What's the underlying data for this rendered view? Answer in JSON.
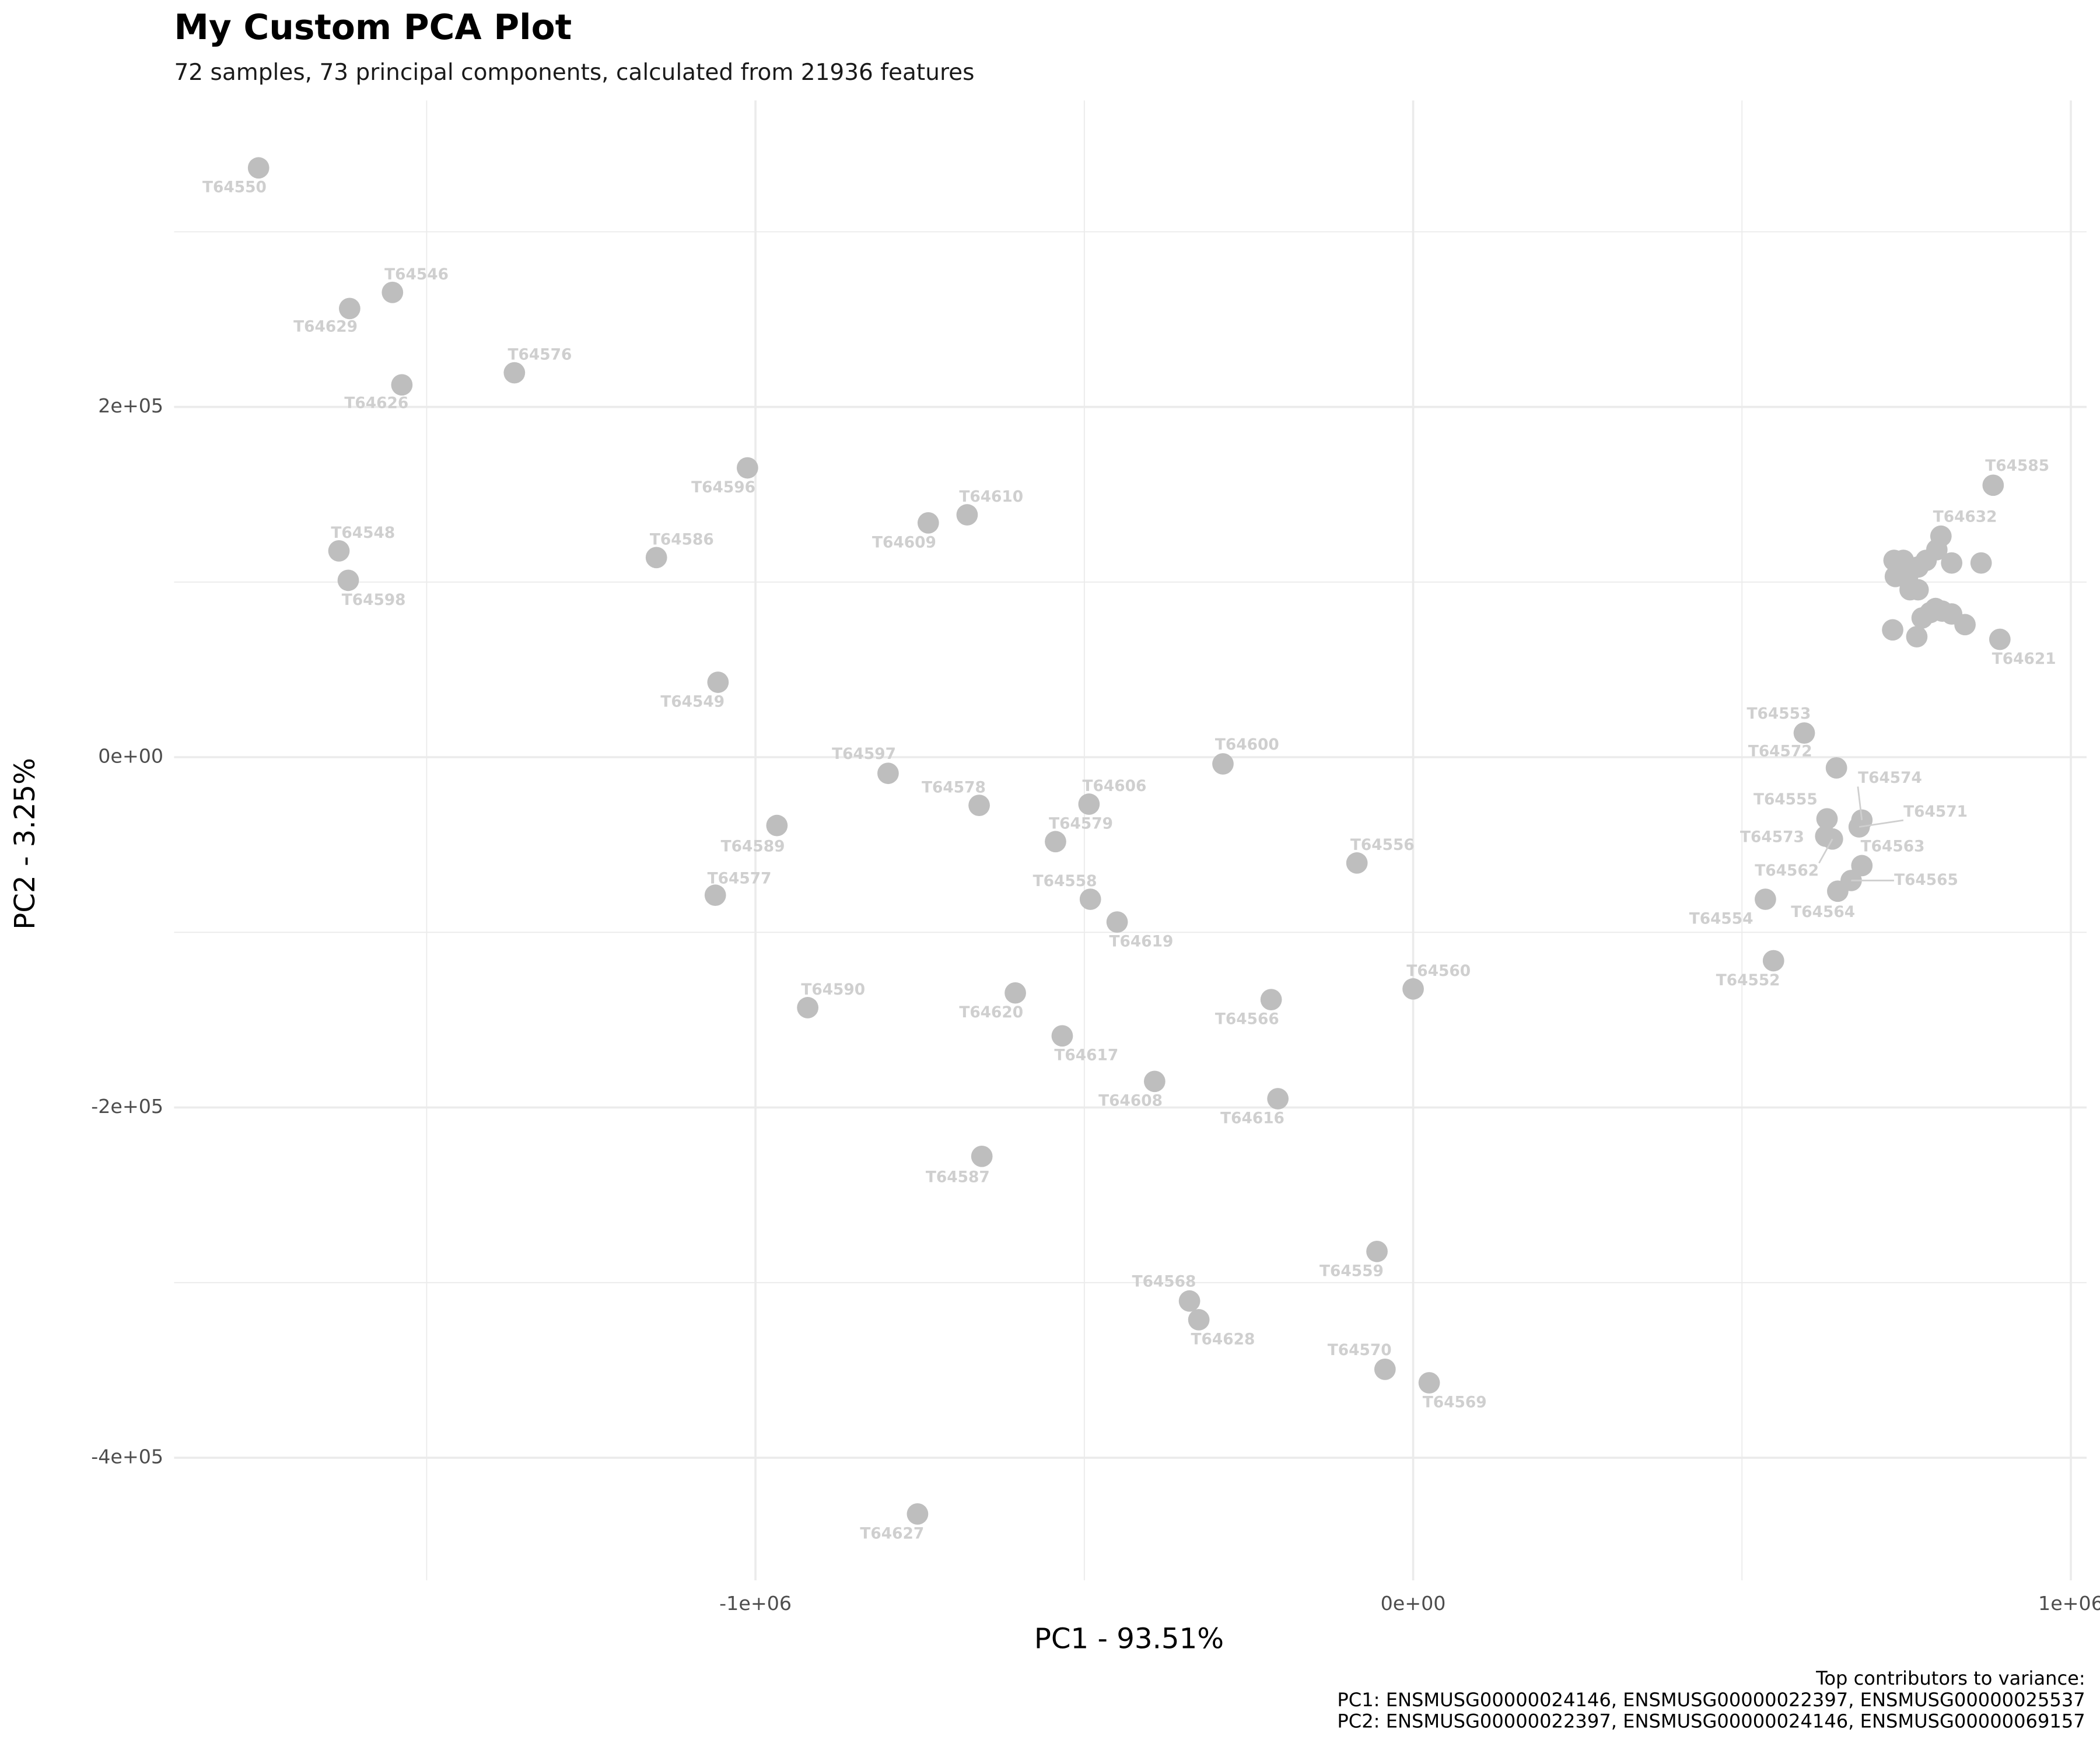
{
  "chart_data": {
    "type": "scatter",
    "title": "My Custom PCA Plot",
    "subtitle": "72 samples, 73 principal components, calculated from 21936 features",
    "xlabel": "PC1 - 93.51%",
    "ylabel": "PC2 - 3.25%",
    "caption": [
      "Top contributors to variance:",
      "PC1: ENSMUSG00000024146, ENSMUSG00000022397, ENSMUSG00000025537",
      "PC2: ENSMUSG00000022397, ENSMUSG00000024146, ENSMUSG00000069157"
    ],
    "color": "#bebebe",
    "label_color": "#cfcfcf",
    "grid": true,
    "xlim": [
      -1884000,
      1024000
    ],
    "ylim": [
      -470000,
      375000
    ],
    "xticks": [
      {
        "value": -1000000,
        "label": "-1e+06"
      },
      {
        "value": 0,
        "label": "0e+00"
      },
      {
        "value": 1000000,
        "label": "1e+06"
      }
    ],
    "yticks": [
      {
        "value": -400000,
        "label": "-4e+05"
      },
      {
        "value": -200000,
        "label": "-2e+05"
      },
      {
        "value": 0,
        "label": "0e+00"
      },
      {
        "value": 200000,
        "label": "2e+05"
      }
    ],
    "x_minor_grid": [
      -1500000,
      -500000,
      500000
    ],
    "y_minor_grid": [
      -300000,
      -100000,
      100000,
      300000
    ],
    "labels": [
      "T64550",
      "T64546",
      "T64629",
      "T64626",
      "T64576",
      "T64596",
      "T64610",
      "T64609",
      "T64548",
      "T64586",
      "T64598",
      "T64549",
      "T64597",
      "T64600",
      "T64578",
      "T64606",
      "T64589",
      "T64579",
      "T64556",
      "T64577",
      "T64558",
      "T64619",
      "T64560",
      "T64566",
      "T64620",
      "T64590",
      "T64617",
      "T64608",
      "T64616",
      "T64587",
      "T64559",
      "T64568",
      "T64628",
      "T64570",
      "T64569",
      "T64627",
      "T64553",
      "T64572",
      "T64574",
      "T64571",
      "T64555",
      "T64573",
      "T64562",
      "T64563",
      "T64565",
      "T64564",
      "T64554",
      "T64552",
      "T64585",
      "T64632",
      "T64621",
      null,
      null,
      null,
      null,
      null,
      null,
      null,
      null,
      null,
      null,
      null,
      null,
      null,
      null,
      null,
      null,
      null,
      null,
      null,
      null,
      null
    ],
    "x": [
      -1755600,
      -1552000,
      -1617100,
      -1537700,
      -1366600,
      -1012200,
      -678200,
      -737300,
      -1633400,
      -1150700,
      -1619200,
      -1057000,
      -798400,
      -289200,
      -659900,
      -492900,
      -967400,
      -543800,
      -85500,
      -1061100,
      -490800,
      -450100,
      0,
      -215900,
      -604900,
      -920600,
      -533600,
      -393100,
      -205700,
      -655800,
      -55000,
      -340100,
      -325900,
      -42800,
      24400,
      -753600,
      594700,
      643600,
      682300,
      678200,
      629300,
      627300,
      637500,
      682300,
      666000,
      645600,
      535600,
      547900,
      881900,
      802500,
      892100,
      731200,
      745400,
      733200,
      743400,
      757700,
      767800,
      780000,
      796300,
      818800,
      863600,
      751500,
      755600,
      767800,
      786200,
      773900,
      794300,
      804500,
      818800,
      839100,
      729100,
      765800
    ],
    "values": [
      336500,
      265400,
      256200,
      212600,
      219500,
      165200,
      138400,
      133800,
      117800,
      114000,
      101000,
      42800,
      -9200,
      -3800,
      -27500,
      -26800,
      -39000,
      -48200,
      -60400,
      -78800,
      -81100,
      -94100,
      -132300,
      -138400,
      -134600,
      -143000,
      -159100,
      -185100,
      -195000,
      -227900,
      -282200,
      -310500,
      -321200,
      -349500,
      -357200,
      -432100,
      13800,
      -6100,
      -35900,
      -39800,
      -35200,
      -45100,
      -46700,
      -61900,
      -70400,
      -76500,
      -81100,
      -116200,
      155300,
      126200,
      67300,
      112400,
      112400,
      103200,
      107100,
      107100,
      108600,
      112400,
      118500,
      110900,
      110900,
      101700,
      95600,
      95600,
      82600,
      79500,
      84900,
      83400,
      81800,
      75700,
      72700,
      68800
    ]
  }
}
